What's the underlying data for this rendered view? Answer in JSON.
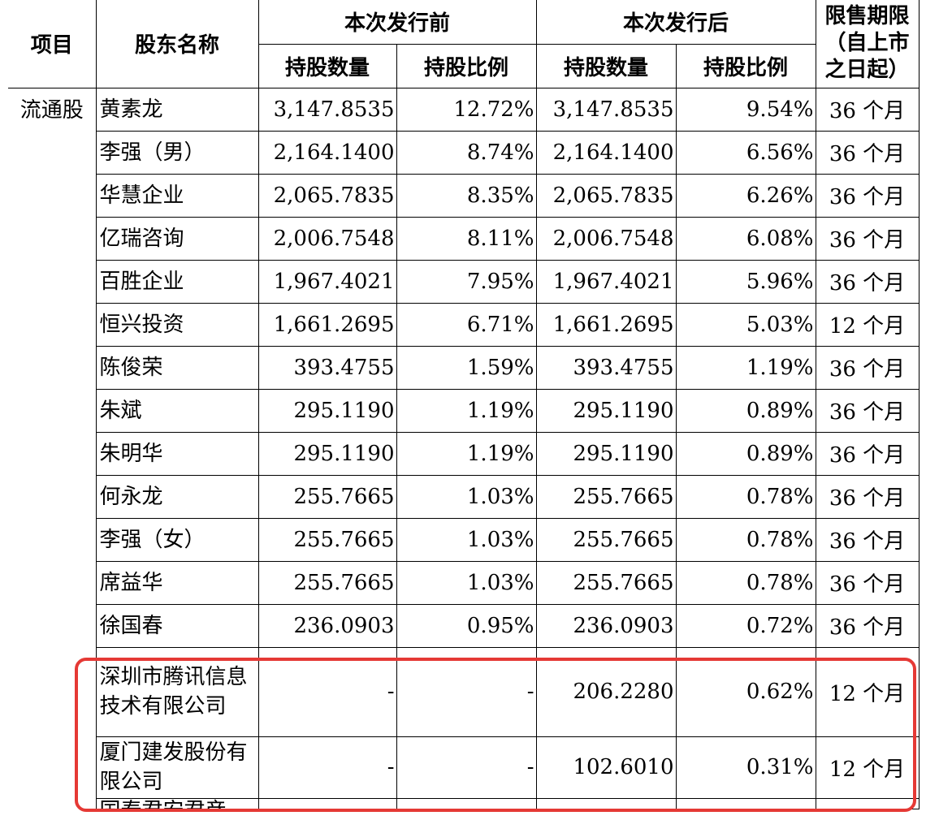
{
  "header": {
    "item": "项目",
    "shareholder": "股东名称",
    "before": "本次发行前",
    "after": "本次发行后",
    "shares": "持股数量",
    "ratio": "持股比例",
    "lock": "限售期限（自上市之日起）"
  },
  "category": "流通股",
  "rows": [
    {
      "name": "黄素龙",
      "pre_shares": "3,147.8535",
      "pre_ratio": "12.72%",
      "post_shares": "3,147.8535",
      "post_ratio": "9.54%",
      "period": "36 个月"
    },
    {
      "name": "李强（男）",
      "pre_shares": "2,164.1400",
      "pre_ratio": "8.74%",
      "post_shares": "2,164.1400",
      "post_ratio": "6.56%",
      "period": "36 个月"
    },
    {
      "name": "华慧企业",
      "pre_shares": "2,065.7835",
      "pre_ratio": "8.35%",
      "post_shares": "2,065.7835",
      "post_ratio": "6.26%",
      "period": "36 个月"
    },
    {
      "name": "亿瑞咨询",
      "pre_shares": "2,006.7548",
      "pre_ratio": "8.11%",
      "post_shares": "2,006.7548",
      "post_ratio": "6.08%",
      "period": "36 个月"
    },
    {
      "name": "百胜企业",
      "pre_shares": "1,967.4021",
      "pre_ratio": "7.95%",
      "post_shares": "1,967.4021",
      "post_ratio": "5.96%",
      "period": "36 个月"
    },
    {
      "name": "恒兴投资",
      "pre_shares": "1,661.2695",
      "pre_ratio": "6.71%",
      "post_shares": "1,661.2695",
      "post_ratio": "5.03%",
      "period": "12 个月"
    },
    {
      "name": "陈俊荣",
      "pre_shares": "393.4755",
      "pre_ratio": "1.59%",
      "post_shares": "393.4755",
      "post_ratio": "1.19%",
      "period": "36 个月"
    },
    {
      "name": "朱斌",
      "pre_shares": "295.1190",
      "pre_ratio": "1.19%",
      "post_shares": "295.1190",
      "post_ratio": "0.89%",
      "period": "36 个月"
    },
    {
      "name": "朱明华",
      "pre_shares": "295.1190",
      "pre_ratio": "1.19%",
      "post_shares": "295.1190",
      "post_ratio": "0.89%",
      "period": "36 个月"
    },
    {
      "name": "何永龙",
      "pre_shares": "255.7665",
      "pre_ratio": "1.03%",
      "post_shares": "255.7665",
      "post_ratio": "0.78%",
      "period": "36 个月"
    },
    {
      "name": "李强（女）",
      "pre_shares": "255.7665",
      "pre_ratio": "1.03%",
      "post_shares": "255.7665",
      "post_ratio": "0.78%",
      "period": "36 个月"
    },
    {
      "name": "席益华",
      "pre_shares": "255.7665",
      "pre_ratio": "1.03%",
      "post_shares": "255.7665",
      "post_ratio": "0.78%",
      "period": "36 个月"
    },
    {
      "name": "徐国春",
      "pre_shares": "236.0903",
      "pre_ratio": "0.95%",
      "post_shares": "236.0903",
      "post_ratio": "0.72%",
      "period": "36 个月"
    },
    {
      "name": "深圳市腾讯信息技术有限公司",
      "pre_shares": "-",
      "pre_ratio": "-",
      "post_shares": "206.2280",
      "post_ratio": "0.62%",
      "period": "12 个月"
    },
    {
      "name": "厦门建发股份有限公司",
      "pre_shares": "-",
      "pre_ratio": "-",
      "post_shares": "102.6010",
      "post_ratio": "0.31%",
      "period": "12 个月"
    }
  ],
  "cutoff_row_name": "国泰君安君彦",
  "highlight_color": "#e53935"
}
